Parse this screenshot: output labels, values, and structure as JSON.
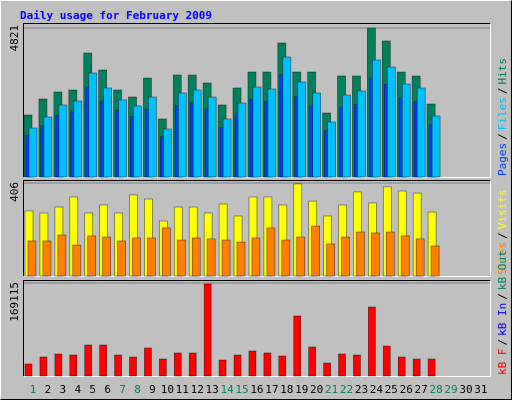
{
  "chart_data": [
    {
      "type": "bar",
      "title": "Daily usage for February 2009",
      "ylim": [
        0,
        4821
      ],
      "yticks": [
        4821
      ],
      "legend_separator": "/",
      "series": [
        {
          "name": "Hits",
          "color": "#00805c",
          "values": [
            2006,
            2524,
            2750,
            2815,
            4012,
            3462,
            2815,
            2588,
            3203,
            1877,
            3300,
            3300,
            3041,
            2330,
            2880,
            3397,
            3397,
            4336,
            3397,
            3397,
            2071,
            3268,
            3268,
            4821,
            4400,
            3397,
            3268,
            2362,
            null,
            null,
            null
          ]
        },
        {
          "name": "Pages",
          "color": "#0040ff",
          "values": [
            1350,
            1650,
            2000,
            2100,
            2900,
            2450,
            2150,
            1950,
            2200,
            1300,
            2300,
            2400,
            2200,
            1600,
            2050,
            2500,
            2450,
            3300,
            2600,
            2300,
            1500,
            2250,
            2350,
            3200,
            3000,
            2550,
            2450,
            1700,
            null,
            null,
            null
          ]
        },
        {
          "name": "Files",
          "color": "#00c0ff",
          "values": [
            1585,
            1941,
            2330,
            2459,
            3365,
            2880,
            2492,
            2297,
            2588,
            1553,
            2718,
            2815,
            2588,
            1877,
            2394,
            2912,
            2847,
            3883,
            3074,
            2718,
            1780,
            2653,
            2783,
            3786,
            3559,
            3009,
            2880,
            1974,
            null,
            null,
            null
          ]
        }
      ]
    },
    {
      "type": "bar",
      "ylim": [
        0,
        406
      ],
      "yticks": [
        406
      ],
      "legend_separator": "/",
      "series": [
        {
          "name": "Visits",
          "color": "#ffff00",
          "values": [
            284,
            275,
            301,
            345,
            275,
            310,
            275,
            354,
            336,
            240,
            301,
            301,
            275,
            314,
            262,
            345,
            345,
            310,
            402,
            327,
            262,
            310,
            367,
            319,
            389,
            371,
            362,
            279,
            null,
            null,
            null
          ]
        },
        {
          "name": "Sites",
          "color": "#ff8000",
          "values": [
            153,
            153,
            179,
            135,
            175,
            170,
            153,
            166,
            166,
            210,
            157,
            166,
            162,
            157,
            148,
            166,
            210,
            157,
            170,
            218,
            140,
            170,
            192,
            188,
            192,
            175,
            162,
            131,
            null,
            null,
            null
          ]
        }
      ]
    },
    {
      "type": "bar",
      "ylim": [
        0,
        169115
      ],
      "yticks": [
        169115
      ],
      "legend_separator": "/",
      "categories": [
        "1",
        "2",
        "3",
        "4",
        "5",
        "6",
        "7",
        "8",
        "9",
        "10",
        "11",
        "12",
        "13",
        "14",
        "15",
        "16",
        "17",
        "18",
        "19",
        "20",
        "21",
        "22",
        "23",
        "24",
        "25",
        "26",
        "27",
        "28",
        "29",
        "30",
        "31"
      ],
      "category_colors": [
        "#00805c",
        "#000000",
        "#000000",
        "#000000",
        "#000000",
        "#000000",
        "#00805c",
        "#00805c",
        "#000000",
        "#000000",
        "#000000",
        "#000000",
        "#000000",
        "#00805c",
        "#00805c",
        "#000000",
        "#000000",
        "#000000",
        "#000000",
        "#000000",
        "#00805c",
        "#00805c",
        "#000000",
        "#000000",
        "#000000",
        "#000000",
        "#000000",
        "#00805c",
        "#00805c",
        "#000000",
        "#000000"
      ],
      "series": [
        {
          "name": "kB F",
          "color": "#ff0000",
          "values": [
            21821,
            34551,
            40006,
            38188,
            56371,
            56371,
            38188,
            34551,
            50916,
            30913,
            41824,
            41824,
            167296,
            29095,
            38188,
            45461,
            41824,
            36369,
            109105,
            52734,
            23639,
            40006,
            38188,
            125470,
            54552,
            34551,
            30913,
            30913,
            null,
            null,
            null
          ]
        },
        {
          "name": "kB In",
          "color": "#0000ff"
        },
        {
          "name": "kB Out",
          "color": "#00805c"
        }
      ]
    }
  ]
}
